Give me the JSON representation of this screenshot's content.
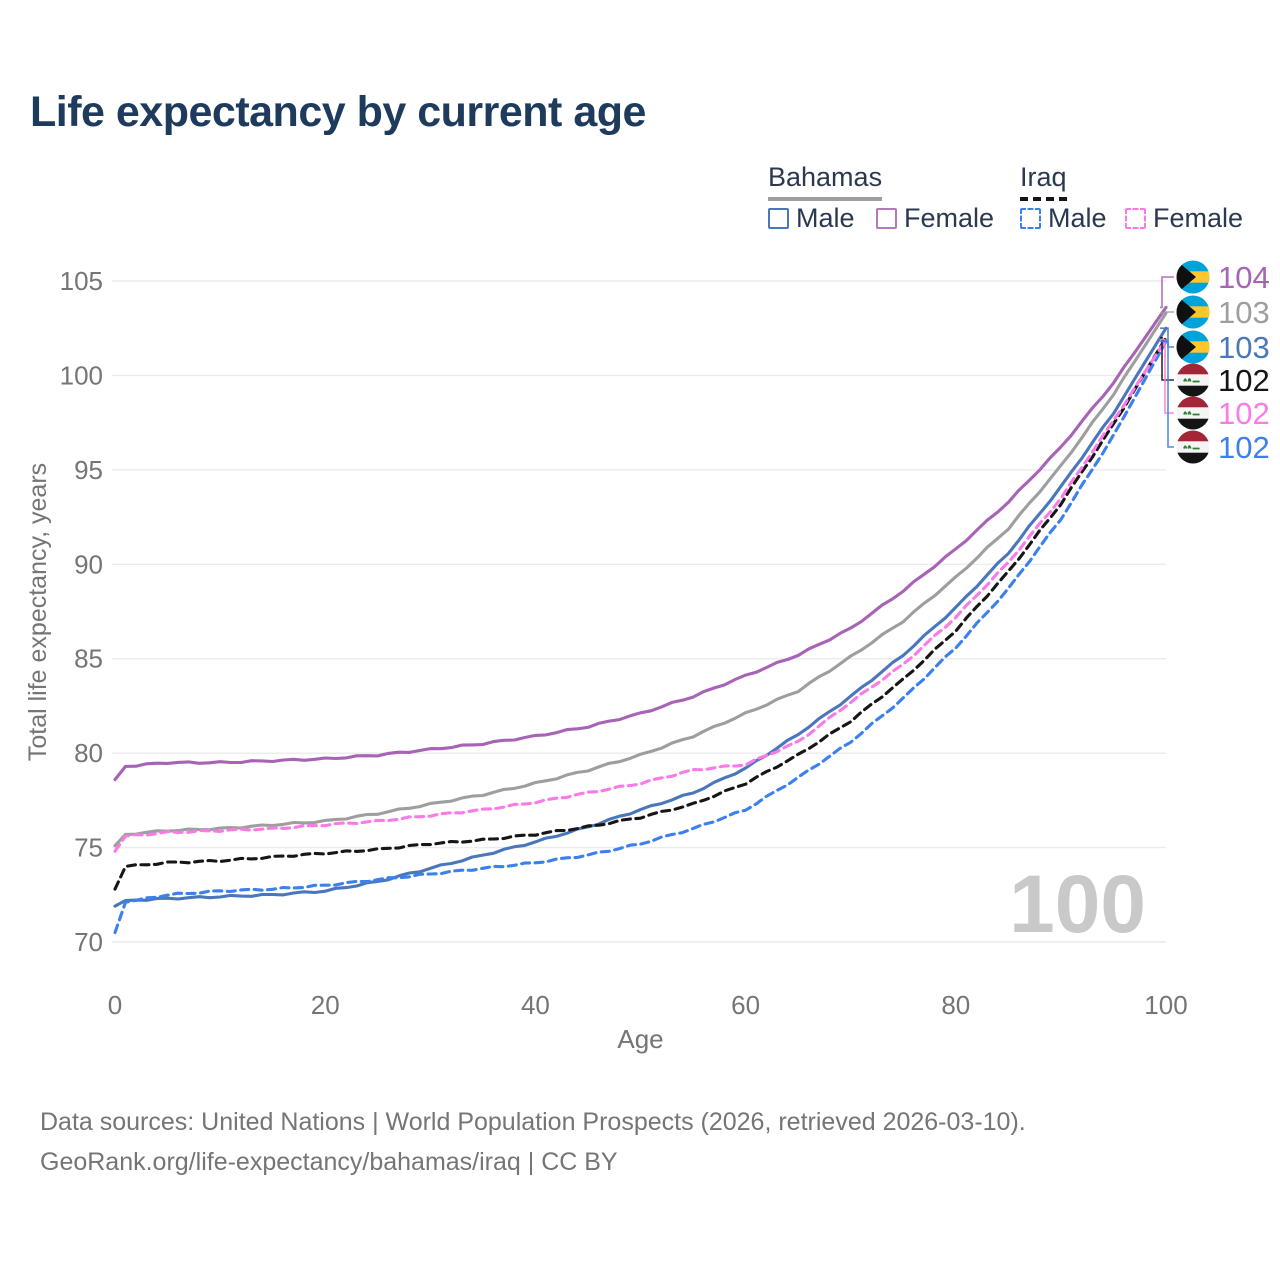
{
  "header": {
    "title": "Life expectancy by current age"
  },
  "legend": {
    "groups": [
      {
        "label": "Bahamas",
        "line_style": "solid",
        "line_color": "#9e9e9e"
      },
      {
        "label": "Iraq",
        "line_style": "dashed",
        "line_color": "#161616"
      }
    ],
    "entries": [
      {
        "label": "Male",
        "color": "#4a77bc",
        "dash": false
      },
      {
        "label": "Female",
        "color": "#b379b8",
        "dash": false
      },
      {
        "label": "Male",
        "color": "#3b80ee",
        "dash": true
      },
      {
        "label": "Female",
        "color": "#fa7ae6",
        "dash": true
      }
    ]
  },
  "chart_data": {
    "type": "line",
    "title": "Life expectancy by current age",
    "xlabel": "Age",
    "ylabel": "Total life expectancy, years",
    "xlim": [
      0,
      100
    ],
    "ylim": [
      70,
      105
    ],
    "xticks": [
      0,
      20,
      40,
      60,
      80,
      100
    ],
    "yticks": [
      70,
      75,
      80,
      85,
      90,
      95,
      100,
      105
    ],
    "grid": "horizontal",
    "age_watermark": "100",
    "x": [
      0,
      1,
      5,
      10,
      15,
      20,
      25,
      30,
      35,
      40,
      45,
      50,
      55,
      60,
      65,
      70,
      75,
      80,
      85,
      90,
      95,
      100
    ],
    "series": [
      {
        "name": "Bahamas Female",
        "country": "bahamas",
        "sex": "female",
        "color": "#a763b6",
        "dash": false,
        "end_label": "104",
        "values": [
          78.6,
          79.3,
          79.5,
          79.5,
          79.6,
          79.7,
          79.9,
          80.2,
          80.5,
          80.9,
          81.4,
          82.1,
          83.0,
          84.1,
          85.2,
          86.6,
          88.6,
          90.8,
          93.3,
          96.2,
          99.6,
          103.6
        ]
      },
      {
        "name": "Bahamas",
        "country": "bahamas",
        "sex": "all",
        "color": "#9e9e9e",
        "dash": false,
        "end_label": "103",
        "values": [
          75.1,
          75.7,
          75.9,
          76.0,
          76.2,
          76.4,
          76.8,
          77.3,
          77.8,
          78.4,
          79.1,
          79.9,
          80.9,
          82.1,
          83.3,
          85.1,
          87.0,
          89.3,
          91.9,
          95.2,
          99.0,
          103.3
        ]
      },
      {
        "name": "Bahamas Male",
        "country": "bahamas",
        "sex": "male",
        "color": "#4a77bc",
        "dash": false,
        "end_label": "103",
        "values": [
          71.9,
          72.2,
          72.3,
          72.4,
          72.5,
          72.7,
          73.2,
          73.9,
          74.6,
          75.3,
          76.1,
          77.0,
          77.9,
          79.2,
          81.0,
          83.0,
          85.2,
          87.7,
          90.6,
          94.1,
          98.0,
          102.5
        ]
      },
      {
        "name": "Iraq Male",
        "country": "iraq",
        "sex": "male",
        "color": "#3b80ee",
        "dash": true,
        "end_label": "102",
        "values": [
          70.5,
          72.1,
          72.5,
          72.7,
          72.8,
          73.0,
          73.3,
          73.6,
          73.9,
          74.2,
          74.6,
          75.2,
          76.0,
          77.0,
          78.7,
          80.6,
          82.9,
          85.6,
          88.7,
          92.4,
          96.8,
          101.8
        ]
      },
      {
        "name": "Iraq",
        "country": "iraq",
        "sex": "all",
        "color": "#161616",
        "dash": true,
        "end_label": "102",
        "values": [
          72.8,
          74.0,
          74.2,
          74.3,
          74.5,
          74.7,
          74.9,
          75.2,
          75.4,
          75.7,
          76.1,
          76.6,
          77.3,
          78.4,
          79.9,
          81.7,
          83.9,
          86.5,
          89.6,
          93.2,
          97.4,
          102.0
        ]
      },
      {
        "name": "Iraq Female",
        "country": "iraq",
        "sex": "female",
        "color": "#fa7ae6",
        "dash": true,
        "end_label": "102",
        "values": [
          74.8,
          75.6,
          75.8,
          75.9,
          76.0,
          76.2,
          76.4,
          76.7,
          77.0,
          77.4,
          77.9,
          78.4,
          79.1,
          79.4,
          80.6,
          82.7,
          84.7,
          87.2,
          90.1,
          93.5,
          97.6,
          101.9
        ]
      }
    ]
  },
  "footer": {
    "line1": "Data sources: United Nations | World Population Prospects (2026, retrieved 2026-03-10).",
    "line2": "GeoRank.org/life-expectancy/bahamas/iraq | CC BY"
  }
}
